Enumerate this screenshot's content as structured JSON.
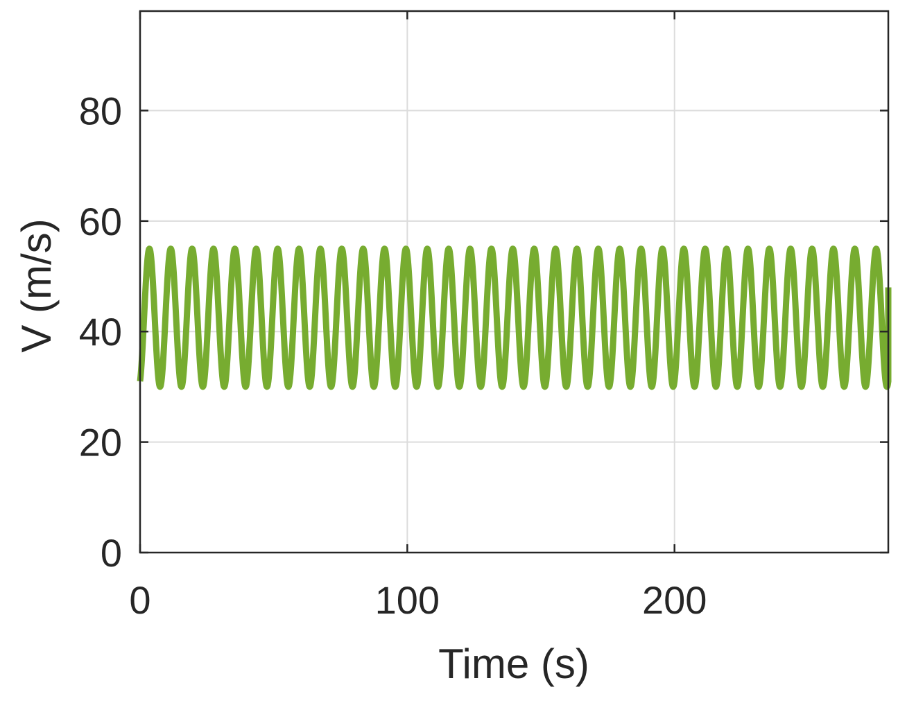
{
  "chart_data": {
    "type": "line",
    "title": "",
    "xlabel": "Time (s)",
    "ylabel": "V (m/s)",
    "xlim": [
      0,
      280
    ],
    "ylim": [
      0,
      98
    ],
    "xticks": [
      0,
      100,
      200
    ],
    "xtick_labels": [
      "0",
      "100",
      "200"
    ],
    "yticks": [
      0,
      20,
      40,
      60,
      80
    ],
    "ytick_labels": [
      "0",
      "20",
      "40",
      "60",
      "80"
    ],
    "grid": true,
    "legend": "none",
    "series": [
      {
        "color": "#77ac30",
        "function": "sinusoid",
        "mean": 42.5,
        "amplitude": 12.5,
        "period": 8,
        "x_start": 0,
        "x_end": 280,
        "y_start": 31,
        "y_end": 48
      }
    ]
  }
}
